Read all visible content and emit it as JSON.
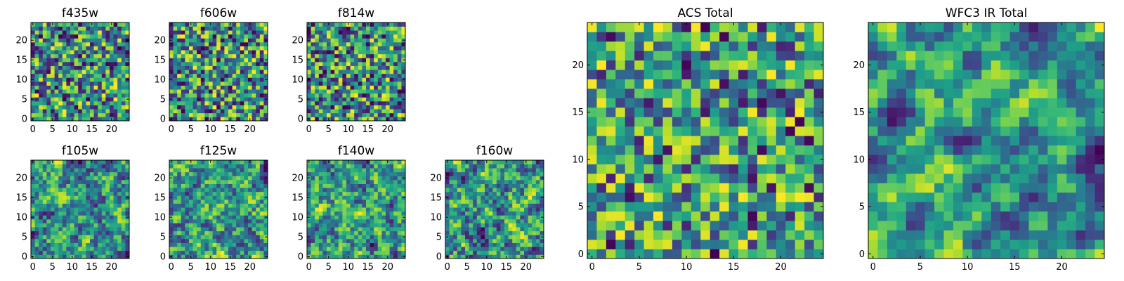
{
  "chart_data": [
    {
      "type": "heatmap",
      "title": "f435w",
      "xticks": [
        "0",
        "5",
        "10",
        "15",
        "20"
      ],
      "yticks": [
        "0",
        "5",
        "10",
        "15",
        "20"
      ],
      "xlim": [
        -0.5,
        24.5
      ],
      "ylim": [
        -0.5,
        24.5
      ],
      "grid_size": [
        25,
        25
      ],
      "colormap": "viridis",
      "seed": 11,
      "smooth": 0,
      "yellowish": 0.55
    },
    {
      "type": "heatmap",
      "title": "f606w",
      "xticks": [
        "0",
        "5",
        "10",
        "15",
        "20"
      ],
      "yticks": [
        "0",
        "5",
        "10",
        "15",
        "20"
      ],
      "xlim": [
        -0.5,
        24.5
      ],
      "ylim": [
        -0.5,
        24.5
      ],
      "grid_size": [
        25,
        25
      ],
      "colormap": "viridis",
      "seed": 23,
      "smooth": 0,
      "yellowish": 0.5
    },
    {
      "type": "heatmap",
      "title": "f814w",
      "xticks": [
        "0",
        "5",
        "10",
        "15",
        "20"
      ],
      "yticks": [
        "0",
        "5",
        "10",
        "15",
        "20"
      ],
      "xlim": [
        -0.5,
        24.5
      ],
      "ylim": [
        -0.5,
        24.5
      ],
      "grid_size": [
        25,
        25
      ],
      "colormap": "viridis",
      "seed": 37,
      "smooth": 0,
      "yellowish": 0.45
    },
    {
      "type": "heatmap",
      "title": "f105w",
      "xticks": [
        "0",
        "5",
        "10",
        "15",
        "20"
      ],
      "yticks": [
        "0",
        "5",
        "10",
        "15",
        "20"
      ],
      "xlim": [
        -0.5,
        24.5
      ],
      "ylim": [
        -0.5,
        24.5
      ],
      "grid_size": [
        25,
        25
      ],
      "colormap": "viridis",
      "seed": 41,
      "smooth": 1,
      "yellowish": 0.55
    },
    {
      "type": "heatmap",
      "title": "f125w",
      "xticks": [
        "0",
        "5",
        "10",
        "15",
        "20"
      ],
      "yticks": [
        "0",
        "5",
        "10",
        "15",
        "20"
      ],
      "xlim": [
        -0.5,
        24.5
      ],
      "ylim": [
        -0.5,
        24.5
      ],
      "grid_size": [
        25,
        25
      ],
      "colormap": "viridis",
      "seed": 53,
      "smooth": 1,
      "yellowish": 0.55
    },
    {
      "type": "heatmap",
      "title": "f140w",
      "xticks": [
        "0",
        "5",
        "10",
        "15",
        "20"
      ],
      "yticks": [
        "0",
        "5",
        "10",
        "15",
        "20"
      ],
      "xlim": [
        -0.5,
        24.5
      ],
      "ylim": [
        -0.5,
        24.5
      ],
      "grid_size": [
        25,
        25
      ],
      "colormap": "viridis",
      "seed": 67,
      "smooth": 1,
      "yellowish": 0.6
    },
    {
      "type": "heatmap",
      "title": "f160w",
      "xticks": [
        "0",
        "5",
        "10",
        "15",
        "20"
      ],
      "yticks": [
        "0",
        "5",
        "10",
        "15",
        "20"
      ],
      "xlim": [
        -0.5,
        24.5
      ],
      "ylim": [
        -0.5,
        24.5
      ],
      "grid_size": [
        25,
        25
      ],
      "colormap": "viridis",
      "seed": 79,
      "smooth": 1,
      "yellowish": 0.55
    },
    {
      "type": "heatmap",
      "title": "ACS Total",
      "xticks": [
        "0",
        "5",
        "10",
        "15",
        "20"
      ],
      "yticks": [
        "0",
        "5",
        "10",
        "15",
        "20"
      ],
      "xlim": [
        -0.5,
        24.5
      ],
      "ylim": [
        -0.5,
        24.5
      ],
      "grid_size": [
        25,
        25
      ],
      "colormap": "viridis",
      "seed": 97,
      "smooth": 0,
      "yellowish": 0.7
    },
    {
      "type": "heatmap",
      "title": "WFC3 IR Total",
      "xticks": [
        "0",
        "5",
        "10",
        "15",
        "20"
      ],
      "yticks": [
        "0",
        "5",
        "10",
        "15",
        "20"
      ],
      "xlim": [
        -0.5,
        24.5
      ],
      "ylim": [
        -0.5,
        24.5
      ],
      "grid_size": [
        25,
        25
      ],
      "colormap": "viridis",
      "seed": 113,
      "smooth": 2,
      "yellowish": 0.45
    }
  ]
}
